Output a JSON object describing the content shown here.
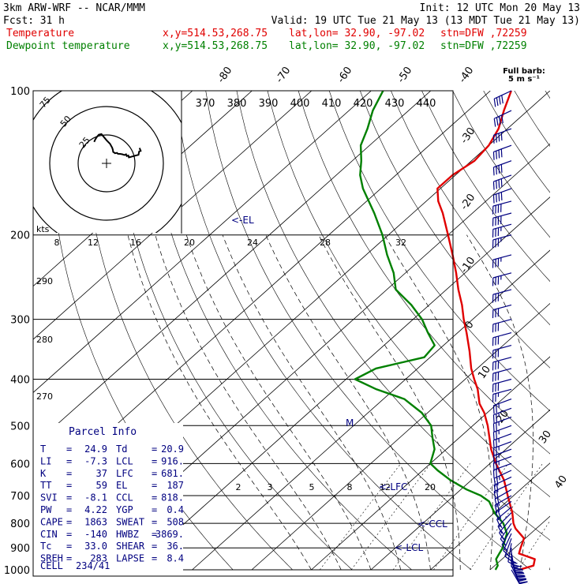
{
  "header": {
    "model": "3km ARW-WRF -- NCAR/MMM",
    "init": "Init: 12 UTC Mon 20 May 13",
    "fcst_label": "Fcst:",
    "fcst_value": "31 h",
    "valid": "Valid: 19 UTC Tue 21 May 13 (13 MDT Tue 21 May 13)",
    "temp_line": {
      "name": "Temperature",
      "xy": "x,y=514.53,268.75",
      "latlon": "lat,lon= 32.90, -97.02",
      "stn": "stn=DFW ,72259"
    },
    "dew_line": {
      "name": "Dewpoint temperature",
      "xy": "x,y=514.53,268.75",
      "latlon": "lat,lon= 32.90, -97.02",
      "stn": "stn=DFW ,72259"
    },
    "barb_legend_1": "Full barb:",
    "barb_legend_2": "5 m s⁻¹"
  },
  "colors": {
    "temperature": "#e00000",
    "dewpoint": "#008000",
    "annotation": "#000080",
    "grid": "#000000"
  },
  "chart_data": {
    "type": "line",
    "chart_kind": "skew-T log-p sounding with hodograph",
    "y_axis": "pressure (hPa)",
    "y_scale": "log",
    "ylim": [
      1000,
      100
    ],
    "pressure_ticks": [
      "100",
      "200",
      "300",
      "400",
      "500",
      "600",
      "700",
      "800",
      "900",
      "1000"
    ],
    "pressure_values": [
      100,
      200,
      300,
      400,
      500,
      600,
      700,
      800,
      900,
      1000
    ],
    "isotherm_labels": [
      "-80",
      "-70",
      "-60",
      "-50",
      "-40",
      "-30",
      "-20",
      "-10",
      "0",
      "10",
      "20",
      "30",
      "40"
    ],
    "isotherm_values": [
      -80,
      -70,
      -60,
      -50,
      -40,
      -30,
      -20,
      -10,
      0,
      10,
      20,
      30,
      40
    ],
    "theta_top_labels": [
      "370",
      "380",
      "390",
      "400",
      "410",
      "420",
      "430",
      "440"
    ],
    "theta_left_labels": [
      "290",
      "280",
      "270"
    ],
    "mixing_ratio_labels": [
      "2",
      "3",
      "5",
      "8",
      "12",
      "20"
    ],
    "mixing_ratio_values": [
      2,
      3,
      5,
      8,
      12,
      20
    ],
    "series": [
      {
        "name": "Temperature",
        "points": [
          [
            1000,
            24.9
          ],
          [
            980,
            26.5
          ],
          [
            950,
            25.5
          ],
          [
            925,
            21.8
          ],
          [
            900,
            21.0
          ],
          [
            860,
            19.8
          ],
          [
            820,
            16.5
          ],
          [
            800,
            15.2
          ],
          [
            760,
            13.0
          ],
          [
            700,
            9.0
          ],
          [
            650,
            5.5
          ],
          [
            600,
            1.0
          ],
          [
            560,
            -2.5
          ],
          [
            500,
            -7.5
          ],
          [
            470,
            -10.5
          ],
          [
            450,
            -13.0
          ],
          [
            420,
            -16.0
          ],
          [
            400,
            -18.5
          ],
          [
            380,
            -21.0
          ],
          [
            350,
            -24.5
          ],
          [
            320,
            -28.5
          ],
          [
            300,
            -31.5
          ],
          [
            280,
            -34.5
          ],
          [
            260,
            -38.0
          ],
          [
            240,
            -41.5
          ],
          [
            220,
            -45.5
          ],
          [
            200,
            -50.0
          ],
          [
            180,
            -55.0
          ],
          [
            170,
            -58.0
          ],
          [
            160,
            -60.5
          ],
          [
            150,
            -60.5
          ],
          [
            140,
            -59.5
          ],
          [
            130,
            -60.0
          ],
          [
            120,
            -61.5
          ],
          [
            110,
            -64.0
          ],
          [
            100,
            -66.5
          ]
        ]
      },
      {
        "name": "Dewpoint temperature",
        "points": [
          [
            1000,
            20.9
          ],
          [
            980,
            20.5
          ],
          [
            950,
            19.0
          ],
          [
            925,
            18.5
          ],
          [
            900,
            18.0
          ],
          [
            870,
            17.0
          ],
          [
            840,
            16.0
          ],
          [
            800,
            13.5
          ],
          [
            760,
            10.0
          ],
          [
            720,
            7.0
          ],
          [
            700,
            4.5
          ],
          [
            680,
            1.0
          ],
          [
            650,
            -3.5
          ],
          [
            620,
            -7.5
          ],
          [
            600,
            -10.0
          ],
          [
            560,
            -12.0
          ],
          [
            530,
            -14.5
          ],
          [
            500,
            -17.0
          ],
          [
            470,
            -21.0
          ],
          [
            440,
            -26.5
          ],
          [
            420,
            -33.0
          ],
          [
            400,
            -38.5
          ],
          [
            380,
            -37.0
          ],
          [
            360,
            -31.0
          ],
          [
            340,
            -31.5
          ],
          [
            320,
            -35.0
          ],
          [
            300,
            -38.5
          ],
          [
            280,
            -43.0
          ],
          [
            260,
            -48.5
          ],
          [
            240,
            -52.0
          ],
          [
            220,
            -56.5
          ],
          [
            200,
            -61.0
          ],
          [
            180,
            -66.5
          ],
          [
            160,
            -73.0
          ],
          [
            150,
            -76.0
          ],
          [
            140,
            -78.5
          ],
          [
            130,
            -81.5
          ],
          [
            120,
            -83.5
          ],
          [
            110,
            -86.0
          ],
          [
            100,
            -88.0
          ]
        ]
      }
    ],
    "annotations": {
      "el": "<-EL",
      "lfc": "<-LFC",
      "ccl": "<-CCL",
      "lcl": "<-LCL",
      "m_marker": "M"
    },
    "hodograph": {
      "unit_label": "kts",
      "ring_labels": [
        "25",
        "50",
        "75"
      ],
      "speed_axis_labels": [
        "8",
        "12",
        "16",
        "20",
        "24",
        "28",
        "32"
      ]
    },
    "parcel_info": {
      "title": "Parcel Info",
      "rows": [
        [
          {
            "k": "T",
            "v": "24.9"
          },
          {
            "k": "Td",
            "v": "20.9"
          }
        ],
        [
          {
            "k": "LI",
            "v": "-7.3"
          },
          {
            "k": "LCL",
            "v": "916."
          }
        ],
        [
          {
            "k": "K",
            "v": "37"
          },
          {
            "k": "LFC",
            "v": "681."
          }
        ],
        [
          {
            "k": "TT",
            "v": "59"
          },
          {
            "k": "EL",
            "v": "187"
          }
        ],
        [
          {
            "k": "SVI",
            "v": "-8.1"
          },
          {
            "k": "CCL",
            "v": "818."
          }
        ],
        [
          {
            "k": "PW",
            "v": "4.22"
          },
          {
            "k": "YGP",
            "v": "0.4"
          }
        ],
        [
          {
            "k": "CAPE",
            "v": "1863"
          },
          {
            "k": "SWEAT",
            "v": "508"
          }
        ],
        [
          {
            "k": "CIN",
            "v": "-140"
          },
          {
            "k": "HWBZ",
            "v": "3869."
          }
        ],
        [
          {
            "k": "Tc",
            "v": "33.0"
          },
          {
            "k": "SHEAR",
            "v": "36."
          }
        ],
        [
          {
            "k": "SREH",
            "v": "283"
          },
          {
            "k": "LAPSE",
            "v": "8.4"
          }
        ]
      ],
      "cell_label": "CELL",
      "cell_value": "234/41"
    },
    "wind_barbs": {
      "pressure": [
        1000,
        980,
        960,
        940,
        920,
        900,
        880,
        860,
        840,
        820,
        800,
        780,
        760,
        740,
        720,
        700,
        680,
        660,
        640,
        620,
        600,
        580,
        560,
        540,
        520,
        500,
        480,
        460,
        440,
        420,
        400,
        380,
        360,
        340,
        320,
        300,
        280,
        260,
        240,
        220,
        200,
        190,
        180,
        170,
        160,
        150,
        140,
        130,
        120,
        110,
        100
      ],
      "dir_deg": [
        150,
        155,
        160,
        165,
        170,
        180,
        190,
        200,
        205,
        210,
        215,
        220,
        225,
        230,
        235,
        240,
        240,
        245,
        245,
        245,
        250,
        250,
        250,
        250,
        250,
        250,
        250,
        250,
        250,
        255,
        255,
        255,
        255,
        255,
        255,
        255,
        255,
        255,
        255,
        255,
        255,
        255,
        255,
        255,
        250,
        250,
        250,
        250,
        250,
        245,
        245
      ],
      "speed_ms": [
        15,
        16,
        17,
        18,
        18,
        14,
        12,
        10,
        9,
        8,
        8,
        8,
        9,
        9,
        10,
        11,
        11,
        12,
        12,
        13,
        13,
        13,
        13,
        13,
        13,
        13,
        13,
        14,
        14,
        14,
        15,
        15,
        15,
        16,
        16,
        16,
        17,
        17,
        18,
        18,
        19,
        19,
        20,
        20,
        21,
        22,
        22,
        22,
        22,
        22,
        22
      ]
    }
  }
}
